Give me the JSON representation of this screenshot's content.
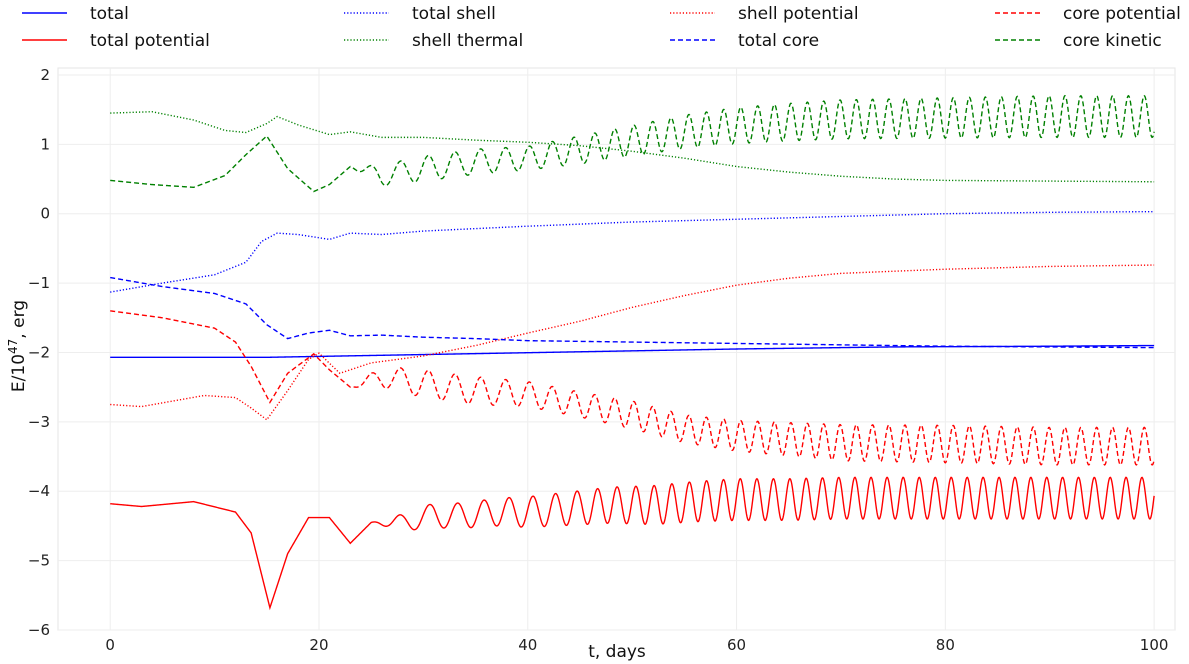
{
  "chart_data": {
    "type": "line",
    "title": "",
    "xlabel": "t, days",
    "ylabel_base": "E/10",
    "ylabel_exp": "47",
    "ylabel_unit": ", erg",
    "xlim": [
      -5,
      102
    ],
    "ylim": [
      -6,
      2.1
    ],
    "xticks": [
      0,
      20,
      40,
      60,
      80,
      100
    ],
    "yticks": [
      -6,
      -5,
      -4,
      -3,
      -2,
      -1,
      0,
      1,
      2
    ],
    "grid": true,
    "legend_position": "top, 4 columns",
    "series": [
      {
        "name": "total",
        "color": "#0000ff",
        "dash": "solid",
        "x": [
          0,
          15,
          30,
          45,
          60,
          75,
          90,
          100
        ],
        "y": [
          -2.07,
          -2.07,
          -2.03,
          -1.99,
          -1.95,
          -1.92,
          -1.91,
          -1.9
        ]
      },
      {
        "name": "total potential",
        "color": "#ff0000",
        "dash": "solid",
        "x": [
          0,
          3,
          8,
          12,
          13.5,
          15.3,
          17,
          19,
          21,
          23,
          25,
          28,
          31,
          34,
          37,
          40,
          44,
          48,
          52,
          56,
          60,
          65,
          70,
          80,
          90,
          100
        ],
        "y": [
          -4.18,
          -4.22,
          -4.15,
          -4.3,
          -4.6,
          -5.68,
          -4.9,
          -4.38,
          -4.38,
          -4.75,
          -4.45,
          -4.45,
          -4.35,
          -4.35,
          -4.3,
          -4.3,
          -4.25,
          -4.2,
          -4.2,
          -4.15,
          -4.12,
          -4.12,
          -4.1,
          -4.1,
          -4.1,
          -4.1
        ],
        "amp": [
          0,
          0,
          0,
          0,
          0,
          0,
          0,
          0,
          0,
          0,
          0,
          0.12,
          0.18,
          0.18,
          0.2,
          0.22,
          0.24,
          0.26,
          0.28,
          0.29,
          0.3,
          0.3,
          0.3,
          0.3,
          0.3,
          0.3
        ],
        "period": [
          2.7,
          2.7,
          2.7,
          2.7,
          2.7,
          2.7,
          2.7,
          2.7,
          2.7,
          2.7,
          2.7,
          2.9,
          2.8,
          2.55,
          2.4,
          2.25,
          2.05,
          1.85,
          1.72,
          1.65,
          1.6,
          1.57,
          1.55,
          1.53,
          1.52,
          1.52
        ]
      },
      {
        "name": "total shell",
        "color": "#0000ff",
        "dash": "dotted",
        "x": [
          0,
          5,
          10,
          13,
          14.5,
          16,
          18,
          21,
          23,
          26,
          30,
          40,
          50,
          60,
          70,
          80,
          90,
          100
        ],
        "y": [
          -1.13,
          -1.0,
          -0.88,
          -0.7,
          -0.4,
          -0.28,
          -0.3,
          -0.37,
          -0.28,
          -0.3,
          -0.25,
          -0.18,
          -0.12,
          -0.08,
          -0.04,
          0.0,
          0.02,
          0.03
        ]
      },
      {
        "name": "shell thermal",
        "color": "#008000",
        "dash": "dotted",
        "x": [
          0,
          4,
          8,
          11,
          13,
          15,
          16,
          18,
          21,
          23,
          26,
          30,
          35,
          40,
          45,
          50,
          55,
          60,
          65,
          70,
          75,
          80,
          90,
          100
        ],
        "y": [
          1.45,
          1.47,
          1.35,
          1.2,
          1.17,
          1.3,
          1.4,
          1.28,
          1.14,
          1.18,
          1.1,
          1.1,
          1.06,
          1.03,
          0.98,
          0.9,
          0.8,
          0.68,
          0.6,
          0.54,
          0.5,
          0.48,
          0.47,
          0.46
        ]
      },
      {
        "name": "shell potential",
        "color": "#ff0000",
        "dash": "dotted",
        "x": [
          0,
          3,
          6,
          9,
          12,
          13.5,
          15,
          17,
          19,
          20,
          22,
          25,
          30,
          35,
          40,
          45,
          50,
          55,
          60,
          65,
          70,
          80,
          90,
          100
        ],
        "y": [
          -2.75,
          -2.78,
          -2.7,
          -2.62,
          -2.65,
          -2.8,
          -2.97,
          -2.55,
          -2.1,
          -2.01,
          -2.3,
          -2.15,
          -2.05,
          -1.9,
          -1.72,
          -1.55,
          -1.35,
          -1.18,
          -1.03,
          -0.93,
          -0.86,
          -0.8,
          -0.76,
          -0.74
        ]
      },
      {
        "name": "total core",
        "color": "#0000ff",
        "dash": "dashed",
        "x": [
          0,
          5,
          10,
          13,
          15,
          17,
          19,
          21,
          23,
          26,
          30,
          35,
          40,
          50,
          60,
          70,
          80,
          90,
          100
        ],
        "y": [
          -0.92,
          -1.05,
          -1.15,
          -1.3,
          -1.6,
          -1.8,
          -1.72,
          -1.68,
          -1.76,
          -1.75,
          -1.78,
          -1.8,
          -1.83,
          -1.85,
          -1.87,
          -1.89,
          -1.91,
          -1.92,
          -1.93
        ]
      },
      {
        "name": "core potential",
        "color": "#ff0000",
        "dash": "dashed",
        "x": [
          0,
          5,
          10,
          12,
          13.5,
          15.3,
          17,
          19.5,
          21,
          23,
          26,
          30,
          35,
          40,
          45,
          50,
          55,
          60,
          65,
          70,
          80,
          90,
          100
        ],
        "y": [
          -1.4,
          -1.5,
          -1.65,
          -1.85,
          -2.2,
          -2.72,
          -2.3,
          -2.02,
          -2.25,
          -2.5,
          -2.35,
          -2.45,
          -2.55,
          -2.6,
          -2.75,
          -2.9,
          -3.1,
          -3.2,
          -3.25,
          -3.3,
          -3.32,
          -3.35,
          -3.35
        ],
        "amp": [
          0,
          0,
          0,
          0,
          0,
          0,
          0,
          0,
          0,
          0,
          0.15,
          0.2,
          0.2,
          0.18,
          0.18,
          0.2,
          0.2,
          0.22,
          0.24,
          0.26,
          0.27,
          0.27,
          0.27
        ],
        "period": [
          2.7,
          2.7,
          2.7,
          2.7,
          2.7,
          2.7,
          2.7,
          2.7,
          2.7,
          2.7,
          2.9,
          2.6,
          2.45,
          2.25,
          2.0,
          1.82,
          1.7,
          1.63,
          1.58,
          1.56,
          1.54,
          1.52,
          1.52
        ]
      },
      {
        "name": "core kinetic",
        "color": "#008000",
        "dash": "dashed",
        "x": [
          0,
          4,
          8,
          11,
          13,
          15,
          17,
          19.5,
          21,
          23,
          26,
          30,
          35,
          40,
          45,
          50,
          55,
          60,
          65,
          70,
          80,
          90,
          100
        ],
        "y": [
          0.48,
          0.42,
          0.38,
          0.55,
          0.85,
          1.12,
          0.65,
          0.32,
          0.42,
          0.68,
          0.55,
          0.65,
          0.75,
          0.8,
          0.92,
          1.05,
          1.18,
          1.27,
          1.32,
          1.36,
          1.38,
          1.4,
          1.4
        ],
        "amp": [
          0,
          0,
          0,
          0,
          0,
          0,
          0,
          0,
          0,
          0,
          0.15,
          0.18,
          0.18,
          0.17,
          0.2,
          0.22,
          0.24,
          0.26,
          0.27,
          0.28,
          0.29,
          0.3,
          0.3
        ],
        "period": [
          2.7,
          2.7,
          2.7,
          2.7,
          2.7,
          2.7,
          2.7,
          2.7,
          2.7,
          2.7,
          2.9,
          2.6,
          2.45,
          2.25,
          2.0,
          1.82,
          1.7,
          1.63,
          1.58,
          1.56,
          1.54,
          1.52,
          1.52
        ]
      }
    ]
  }
}
